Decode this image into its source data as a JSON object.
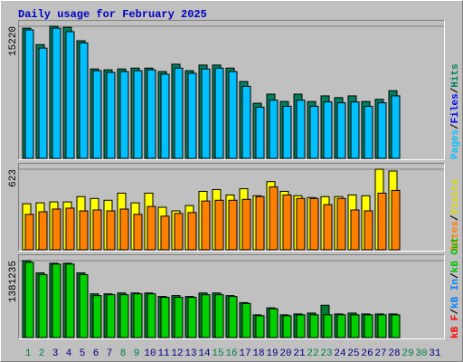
{
  "chart_data": {
    "title": "Daily usage for February 2025",
    "categories": [
      "1",
      "2",
      "3",
      "4",
      "5",
      "6",
      "7",
      "8",
      "9",
      "10",
      "11",
      "12",
      "13",
      "14",
      "15",
      "16",
      "17",
      "18",
      "19",
      "20",
      "21",
      "22",
      "23",
      "24",
      "25",
      "26",
      "27",
      "28",
      "29",
      "30",
      "31"
    ],
    "category_colors": [
      "#008040",
      "#008040",
      "#000080",
      "#000080",
      "#000080",
      "#000080",
      "#000080",
      "#008040",
      "#008040",
      "#000080",
      "#000080",
      "#000080",
      "#000080",
      "#000080",
      "#008040",
      "#008040",
      "#000080",
      "#000080",
      "#000080",
      "#000080",
      "#000080",
      "#008040",
      "#008040",
      "#000080",
      "#000080",
      "#000080",
      "#000080",
      "#000080",
      "#008040",
      "#008040",
      "#000080"
    ],
    "separator": "/",
    "panels": [
      {
        "type": "bar",
        "ylim": [
          0,
          15220
        ],
        "yticks": [
          15220
        ],
        "legend": [
          {
            "label": "Pages",
            "color": "#00C0FF"
          },
          {
            "label": "Files",
            "color": "#0000FF"
          },
          {
            "label": "Hits",
            "color": "#00805C"
          }
        ],
        "series": [
          {
            "name": "Hits",
            "color": "#00805C",
            "values": [
              15000,
              13100,
              15220,
              15100,
              13550,
              10300,
              10200,
              10300,
              10400,
              10400,
              10000,
              10850,
              10100,
              10750,
              10750,
              10400,
              8850,
              6350,
              7400,
              6550,
              7400,
              6550,
              7200,
              7000,
              7200,
              6550,
              6800,
              7800,
              null,
              null,
              null
            ]
          },
          {
            "name": "Pages",
            "color": "#00C0FF",
            "values": [
              14800,
              12700,
              15000,
              14600,
              13300,
              10100,
              9900,
              10000,
              10100,
              10200,
              9700,
              10400,
              9800,
              10300,
              10400,
              10000,
              8300,
              5900,
              6700,
              6000,
              6700,
              6000,
              6500,
              6400,
              6500,
              6000,
              6400,
              7200,
              null,
              null,
              null
            ]
          }
        ]
      },
      {
        "type": "bar",
        "ylim": [
          0,
          623
        ],
        "yticks": [
          623
        ],
        "legend": [
          {
            "label": "Sites",
            "color": "#FF8000"
          },
          {
            "label": "Visits",
            "color": "#E0E000"
          }
        ],
        "series": [
          {
            "name": "Visits",
            "color": "#FFFF00",
            "values": [
              356,
              363,
              370,
              370,
              411,
              397,
              383,
              438,
              363,
              438,
              329,
              301,
              342,
              452,
              466,
              424,
              472,
              418,
              527,
              452,
              418,
              404,
              411,
              411,
              424,
              418,
              623,
              609,
              null,
              null,
              null
            ]
          },
          {
            "name": "Sites",
            "color": "#FF8000",
            "values": [
              274,
              294,
              315,
              322,
              301,
              308,
              301,
              315,
              274,
              335,
              260,
              281,
              288,
              377,
              383,
              383,
              390,
              411,
              486,
              424,
              397,
              397,
              349,
              397,
              308,
              301,
              438,
              459,
              null,
              null,
              null
            ]
          }
        ]
      },
      {
        "type": "bar",
        "ylim": [
          0,
          1381235
        ],
        "yticks": [
          1381235
        ],
        "legend": [
          {
            "label": "kB F",
            "color": "#FF0000"
          },
          {
            "label": "kB In",
            "color": "#0080FF"
          },
          {
            "label": "kB Out",
            "color": "#00C000"
          }
        ],
        "series": [
          {
            "name": "kB Out",
            "color": "#007A30",
            "values": [
              1381235,
              1161500,
              1334200,
              1334200,
              1161500,
              784800,
              784800,
              800500,
              800500,
              800500,
              737700,
              753400,
              737700,
              800500,
              800500,
              753400,
              627800,
              408100,
              533700,
              408100,
              423800,
              439500,
              580800,
              423800,
              439500,
              423800,
              423800,
              423800,
              null,
              null,
              null
            ]
          },
          {
            "name": "kB In",
            "color": "#00D000",
            "values": [
              1349900,
              1130100,
              1318500,
              1318500,
              1130100,
              753400,
              769100,
              769100,
              784800,
              784800,
              722000,
              722000,
              722000,
              769100,
              769100,
              737700,
              612100,
              392400,
              518000,
              392400,
              408100,
              408100,
              408100,
              408100,
              408100,
              408100,
              408100,
              408100,
              null,
              null,
              null
            ]
          }
        ]
      }
    ]
  }
}
